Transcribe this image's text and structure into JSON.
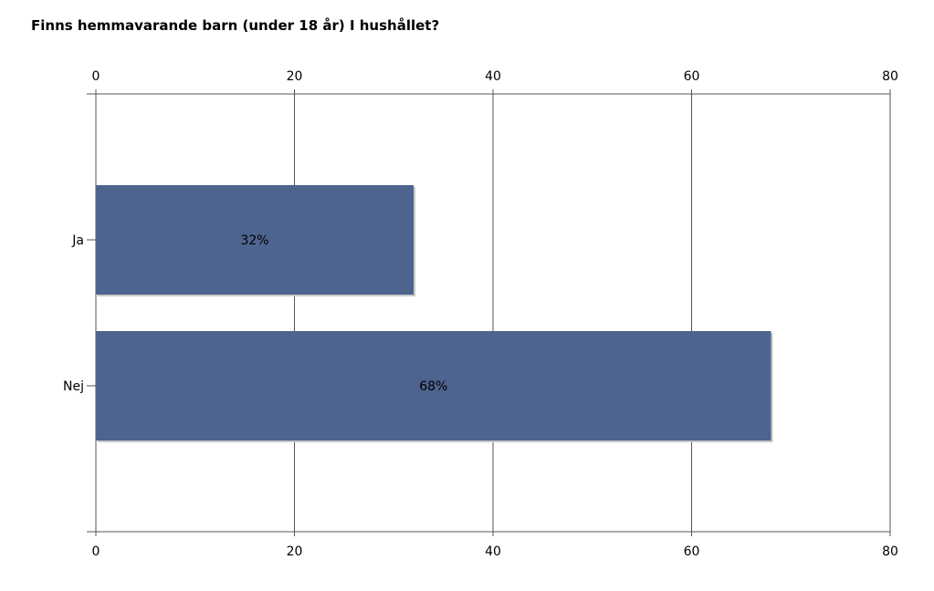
{
  "chart_data": {
    "type": "bar",
    "orientation": "horizontal",
    "title": "Finns hemmavarande barn (under 18 år) I hushållet?",
    "categories": [
      "Ja",
      "Nej"
    ],
    "values": [
      32,
      68
    ],
    "data_labels": [
      "32%",
      "68%"
    ],
    "xlim": [
      0,
      80
    ],
    "xticks": [
      0,
      20,
      40,
      60,
      80
    ],
    "tick_labels": [
      "0",
      "20",
      "40",
      "60",
      "80"
    ],
    "grid": true,
    "axis_labels_top_and_bottom": true,
    "bar_color": "#4d648f"
  }
}
